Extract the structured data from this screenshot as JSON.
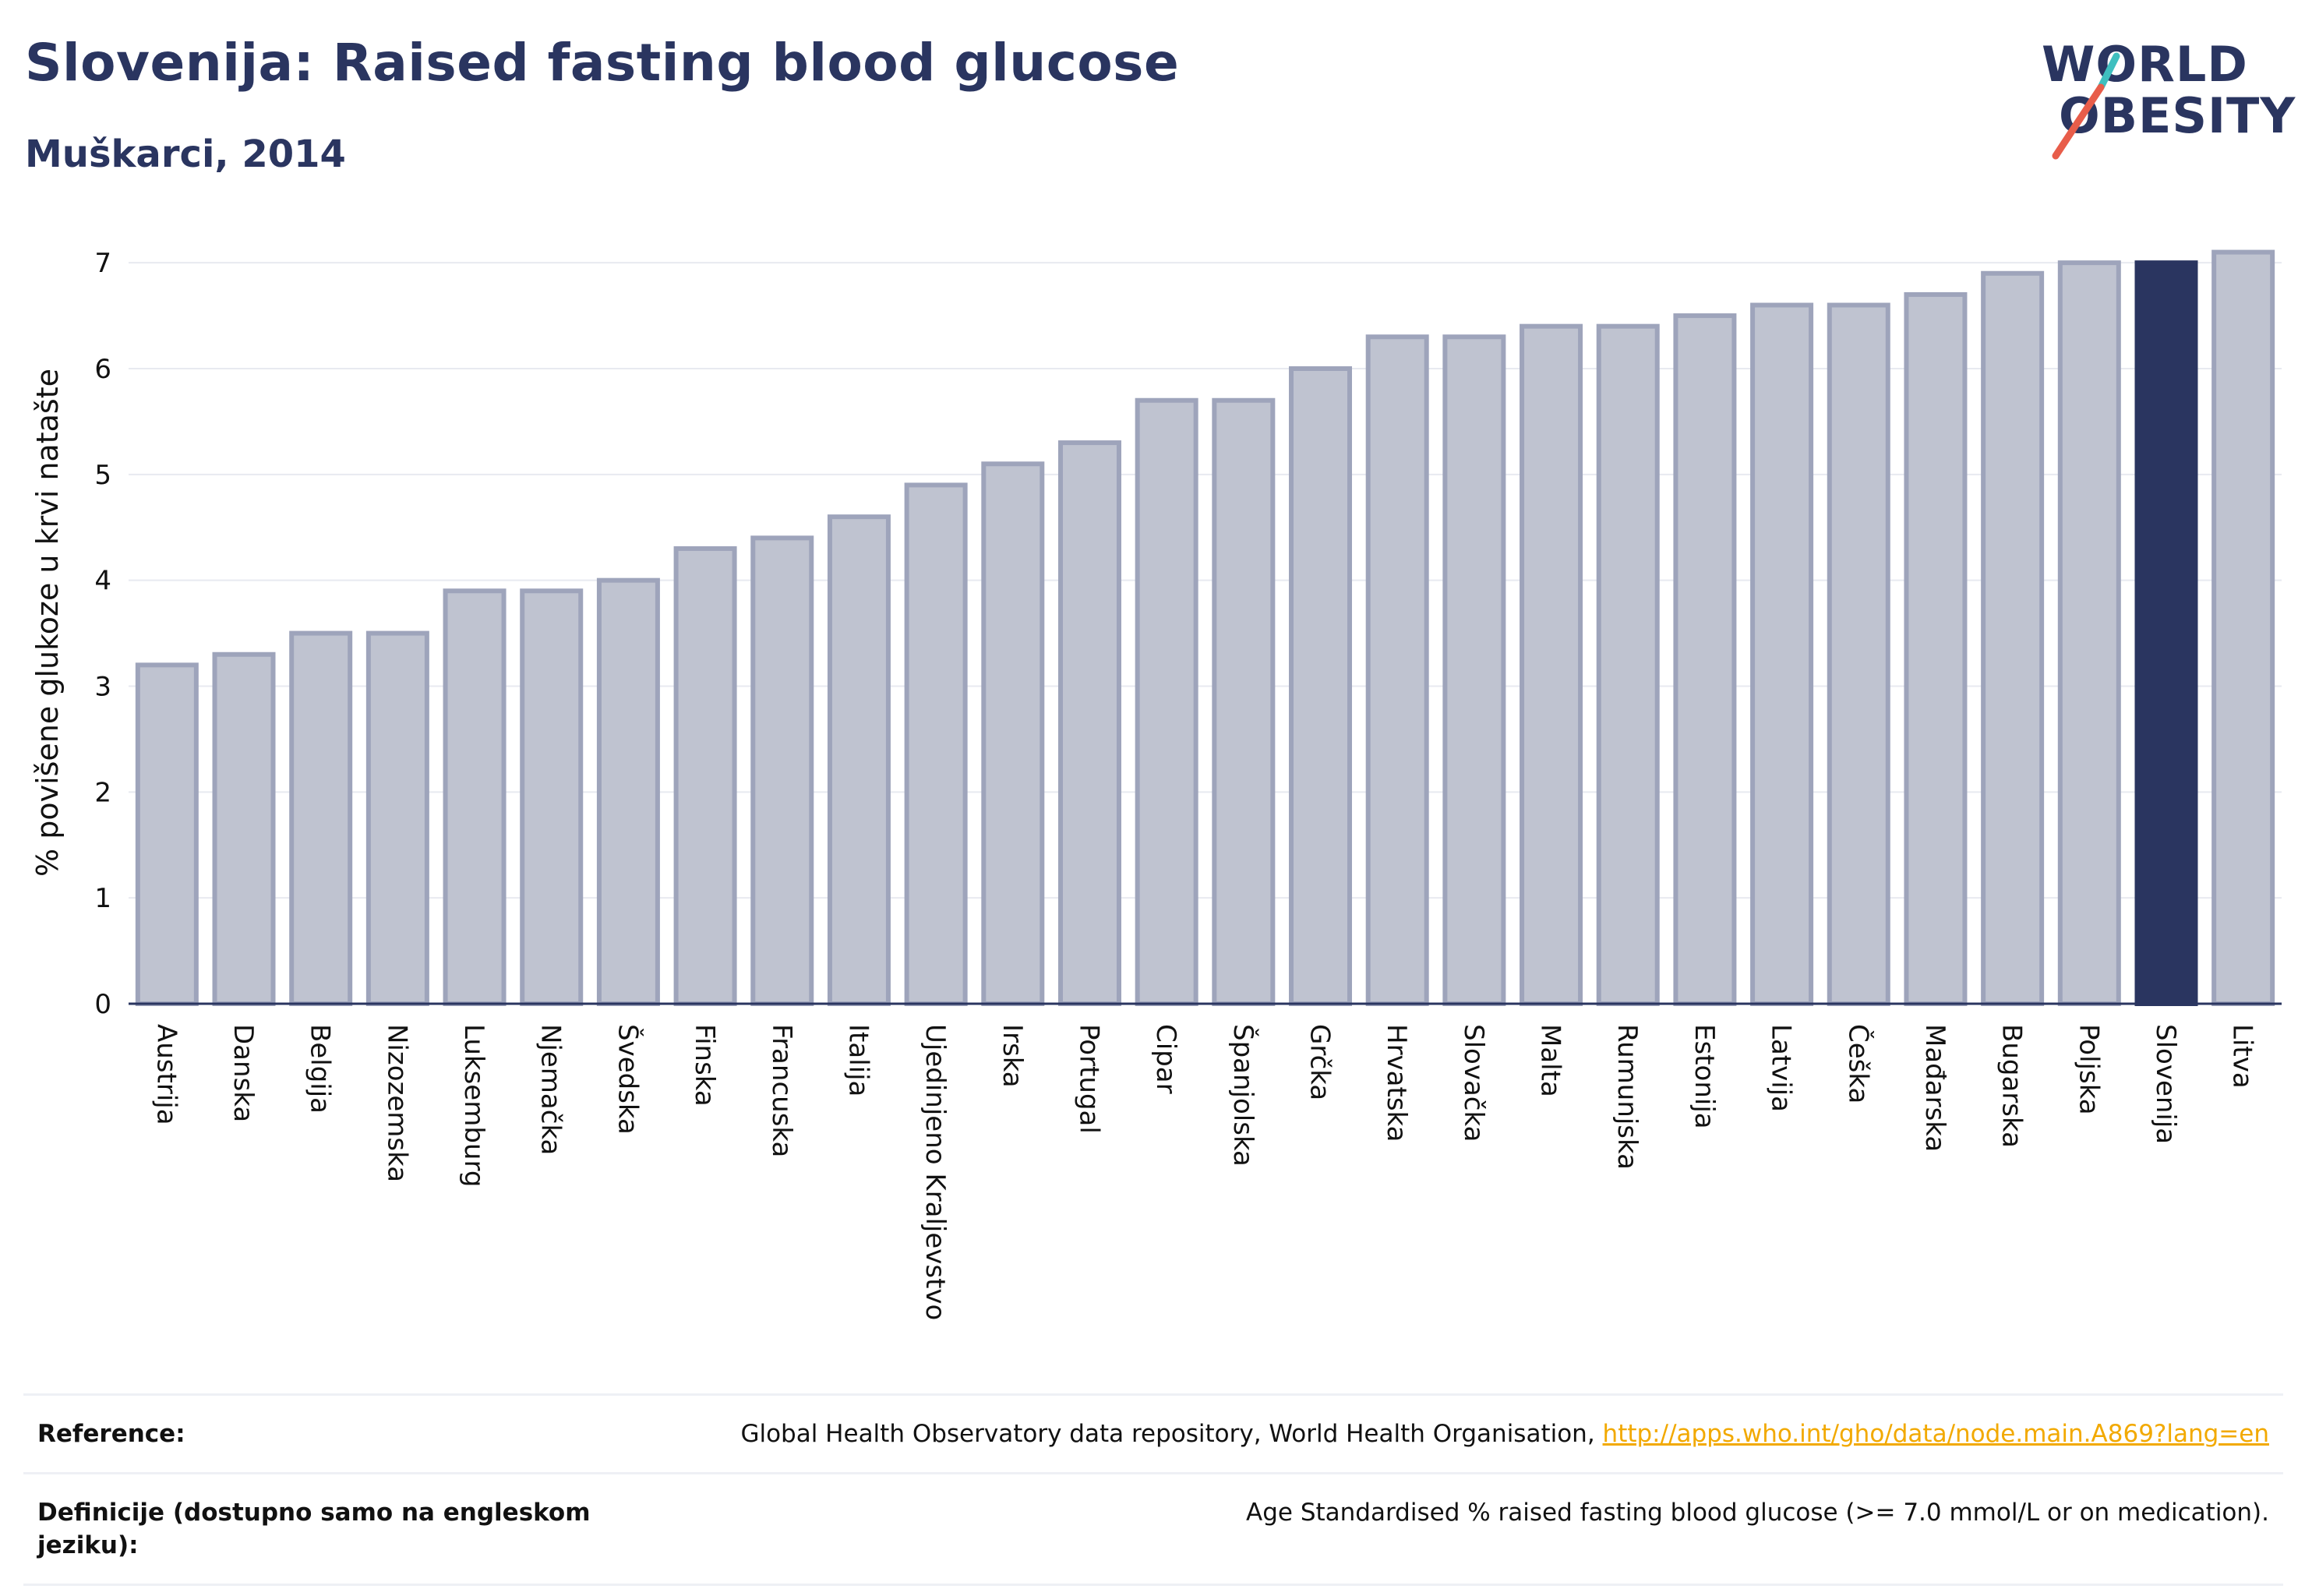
{
  "header": {
    "title": "Slovenija: Raised fasting blood glucose",
    "subtitle": "Muškarci, 2014"
  },
  "logo": {
    "line1": "WORLD",
    "line2": "OBESITY",
    "accent_teal": "#3fbfbf",
    "accent_red": "#e85d4a"
  },
  "colors": {
    "bar": "#bfc3d0",
    "bar_border": "#9ea4bb",
    "highlight": "#2a3560",
    "grid": "#e8eaf0",
    "axis": "#2a3560"
  },
  "chart_data": {
    "type": "bar",
    "ylabel": "% povišene glukoze u krvi natašte",
    "ylim": [
      0,
      7.2
    ],
    "yticks": [
      0,
      1,
      2,
      3,
      4,
      5,
      6,
      7
    ],
    "grid": true,
    "highlight": "Slovenija",
    "categories": [
      "Austrija",
      "Danska",
      "Belgija",
      "Nizozemska",
      "Luksemburg",
      "Njemačka",
      "Švedska",
      "Finska",
      "Francuska",
      "Italija",
      "Ujedinjeno Kraljevstvo",
      "Irska",
      "Portugal",
      "Cipar",
      "Španjolska",
      "Grčka",
      "Hrvatska",
      "Slovačka",
      "Malta",
      "Rumunjska",
      "Estonija",
      "Latvija",
      "Češka",
      "Mađarska",
      "Bugarska",
      "Poljska",
      "Slovenija",
      "Litva"
    ],
    "values": [
      3.2,
      3.3,
      3.5,
      3.5,
      3.9,
      3.9,
      4.0,
      4.3,
      4.4,
      4.6,
      4.9,
      5.1,
      5.3,
      5.7,
      5.7,
      6.0,
      6.3,
      6.3,
      6.4,
      6.4,
      6.5,
      6.6,
      6.6,
      6.7,
      6.9,
      7.0,
      7.0,
      7.1
    ]
  },
  "reference": {
    "label": "Reference:",
    "text": "Global Health Observatory data repository, World Health Organisation, ",
    "link": "http://apps.who.int/gho/data/node.main.A869?lang=en"
  },
  "definition": {
    "label": "Definicije (dostupno samo na engleskom jeziku):",
    "text": "Age Standardised % raised fasting blood glucose (>= 7.0 mmol/L or on medication)."
  }
}
